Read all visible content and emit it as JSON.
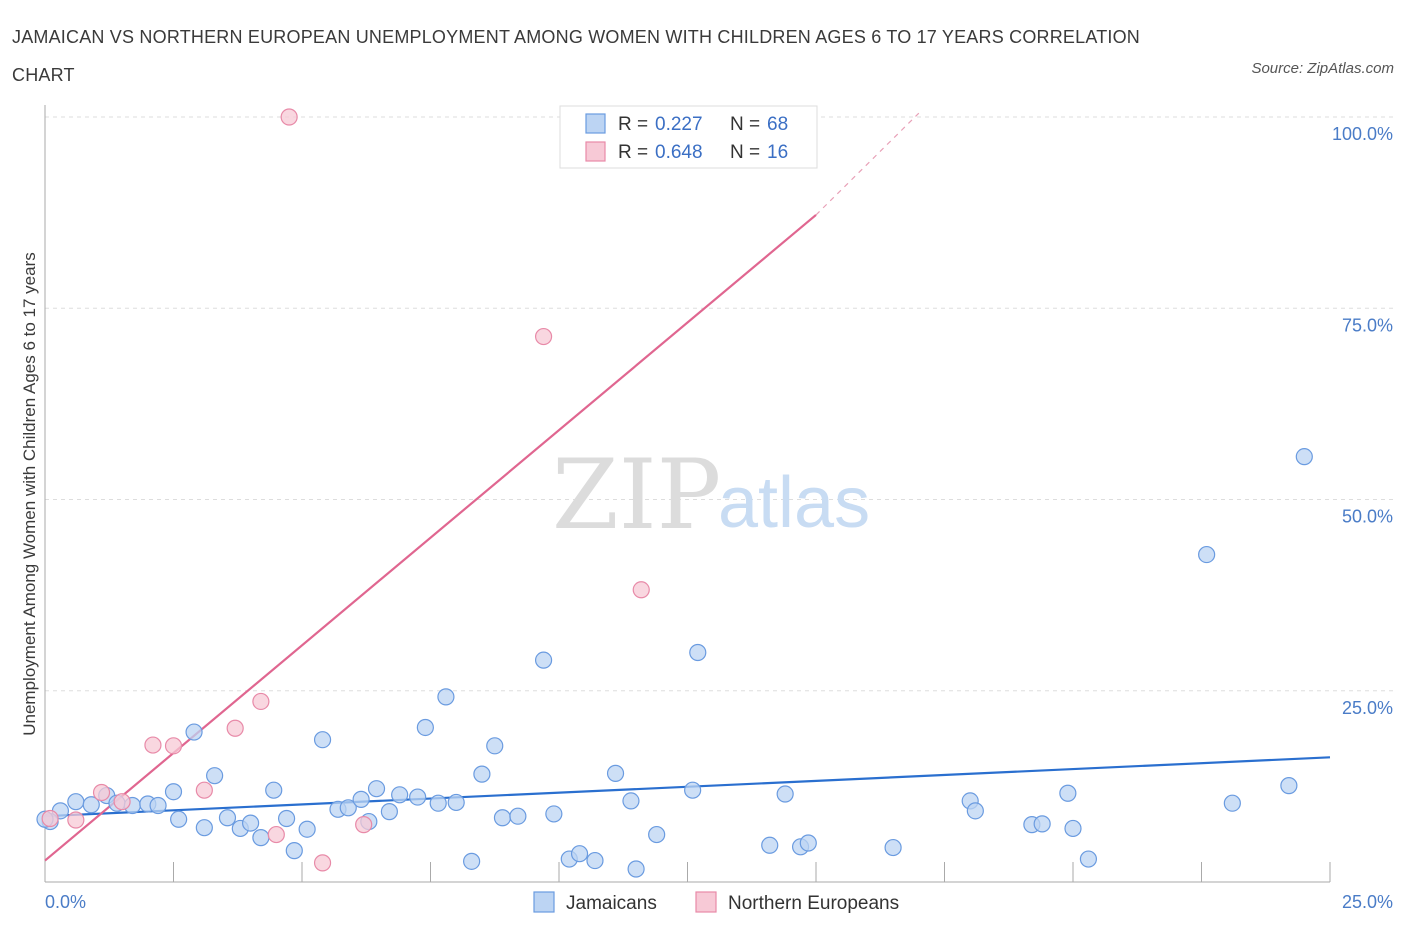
{
  "title": "JAMAICAN VS NORTHERN EUROPEAN UNEMPLOYMENT AMONG WOMEN WITH CHILDREN AGES 6 TO 17 YEARS CORRELATION CHART",
  "source": "Source: ZipAtlas.com",
  "watermark": {
    "zip": "ZIP",
    "atlas": "atlas"
  },
  "chart_data": {
    "type": "scatter",
    "title": "JAMAICAN VS NORTHERN EUROPEAN UNEMPLOYMENT AMONG WOMEN WITH CHILDREN AGES 6 TO 17 YEARS CORRELATION CHART",
    "xlabel": "",
    "ylabel": "Unemployment Among Women with Children Ages 6 to 17 years",
    "xlim": [
      0,
      25
    ],
    "ylim": [
      0,
      100
    ],
    "x_tick_labels": [
      "0.0%",
      "25.0%"
    ],
    "y_tick_labels": [
      "100.0%",
      "75.0%",
      "50.0%",
      "25.0%"
    ],
    "y_ticks": [
      100,
      75,
      50,
      25
    ],
    "grid": true,
    "legend_position": "top-center",
    "series": [
      {
        "name": "Jamaicans",
        "color": "#6a9be0",
        "fill": "#bcd4f3",
        "R": "0.227",
        "N": "68",
        "trend": {
          "x": [
            0,
            25
          ],
          "y": [
            8.6,
            16.3
          ],
          "color": "#2a6fcf"
        },
        "points": [
          [
            0.3,
            9.3
          ],
          [
            0.6,
            10.5
          ],
          [
            0.9,
            10.1
          ],
          [
            1.2,
            11.3
          ],
          [
            1.4,
            10.3
          ],
          [
            1.7,
            10.0
          ],
          [
            2.0,
            10.2
          ],
          [
            2.2,
            10.0
          ],
          [
            2.5,
            11.8
          ],
          [
            2.6,
            8.2
          ],
          [
            2.9,
            19.6
          ],
          [
            3.1,
            7.1
          ],
          [
            3.3,
            13.9
          ],
          [
            3.55,
            8.4
          ],
          [
            3.8,
            7.0
          ],
          [
            4.0,
            7.7
          ],
          [
            4.2,
            5.8
          ],
          [
            4.45,
            12.0
          ],
          [
            4.7,
            8.3
          ],
          [
            4.85,
            4.1
          ],
          [
            5.1,
            6.9
          ],
          [
            5.4,
            18.6
          ],
          [
            5.7,
            9.5
          ],
          [
            5.9,
            9.7
          ],
          [
            6.15,
            10.8
          ],
          [
            6.3,
            7.9
          ],
          [
            6.45,
            12.2
          ],
          [
            6.7,
            9.2
          ],
          [
            6.9,
            11.4
          ],
          [
            7.25,
            11.1
          ],
          [
            7.4,
            20.2
          ],
          [
            7.65,
            10.3
          ],
          [
            7.8,
            24.2
          ],
          [
            8.0,
            10.4
          ],
          [
            8.3,
            2.7
          ],
          [
            8.5,
            14.1
          ],
          [
            8.75,
            17.8
          ],
          [
            8.9,
            8.4
          ],
          [
            9.2,
            8.6
          ],
          [
            9.7,
            29.0
          ],
          [
            9.9,
            8.9
          ],
          [
            10.2,
            3.0
          ],
          [
            10.4,
            3.7
          ],
          [
            10.7,
            2.8
          ],
          [
            11.1,
            14.2
          ],
          [
            11.4,
            10.6
          ],
          [
            11.5,
            1.7
          ],
          [
            11.9,
            6.2
          ],
          [
            12.6,
            12.0
          ],
          [
            12.7,
            30.0
          ],
          [
            14.1,
            4.8
          ],
          [
            14.4,
            11.5
          ],
          [
            14.7,
            4.6
          ],
          [
            14.85,
            5.1
          ],
          [
            16.5,
            4.5
          ],
          [
            18.0,
            10.6
          ],
          [
            18.1,
            9.3
          ],
          [
            19.2,
            7.5
          ],
          [
            19.4,
            7.6
          ],
          [
            19.9,
            11.6
          ],
          [
            20.0,
            7.0
          ],
          [
            20.3,
            3.0
          ],
          [
            22.6,
            42.8
          ],
          [
            23.1,
            10.3
          ],
          [
            24.2,
            12.6
          ],
          [
            24.5,
            55.6
          ],
          [
            0.1,
            7.9
          ],
          [
            0.0,
            8.2
          ]
        ]
      },
      {
        "name": "Northern Europeans",
        "color": "#e88aa8",
        "fill": "#f7c9d6",
        "R": "0.648",
        "N": "16",
        "trend": {
          "x": [
            0,
            15
          ],
          "y": [
            2.8,
            87.2
          ],
          "color": "#e06690"
        },
        "trend_dashed": {
          "x": [
            15,
            17.0
          ],
          "y": [
            87.2,
            100.5
          ],
          "color": "#e8a0b7"
        },
        "points": [
          [
            0.1,
            8.3
          ],
          [
            0.6,
            8.1
          ],
          [
            1.1,
            11.7
          ],
          [
            1.5,
            10.5
          ],
          [
            2.1,
            17.9
          ],
          [
            2.5,
            17.8
          ],
          [
            3.1,
            12.0
          ],
          [
            3.7,
            20.1
          ],
          [
            4.2,
            23.6
          ],
          [
            4.5,
            6.2
          ],
          [
            4.75,
            100.0
          ],
          [
            5.4,
            2.5
          ],
          [
            6.2,
            7.5
          ],
          [
            9.7,
            71.3
          ],
          [
            11.6,
            38.2
          ],
          [
            12.4,
            100.0
          ]
        ]
      }
    ]
  }
}
